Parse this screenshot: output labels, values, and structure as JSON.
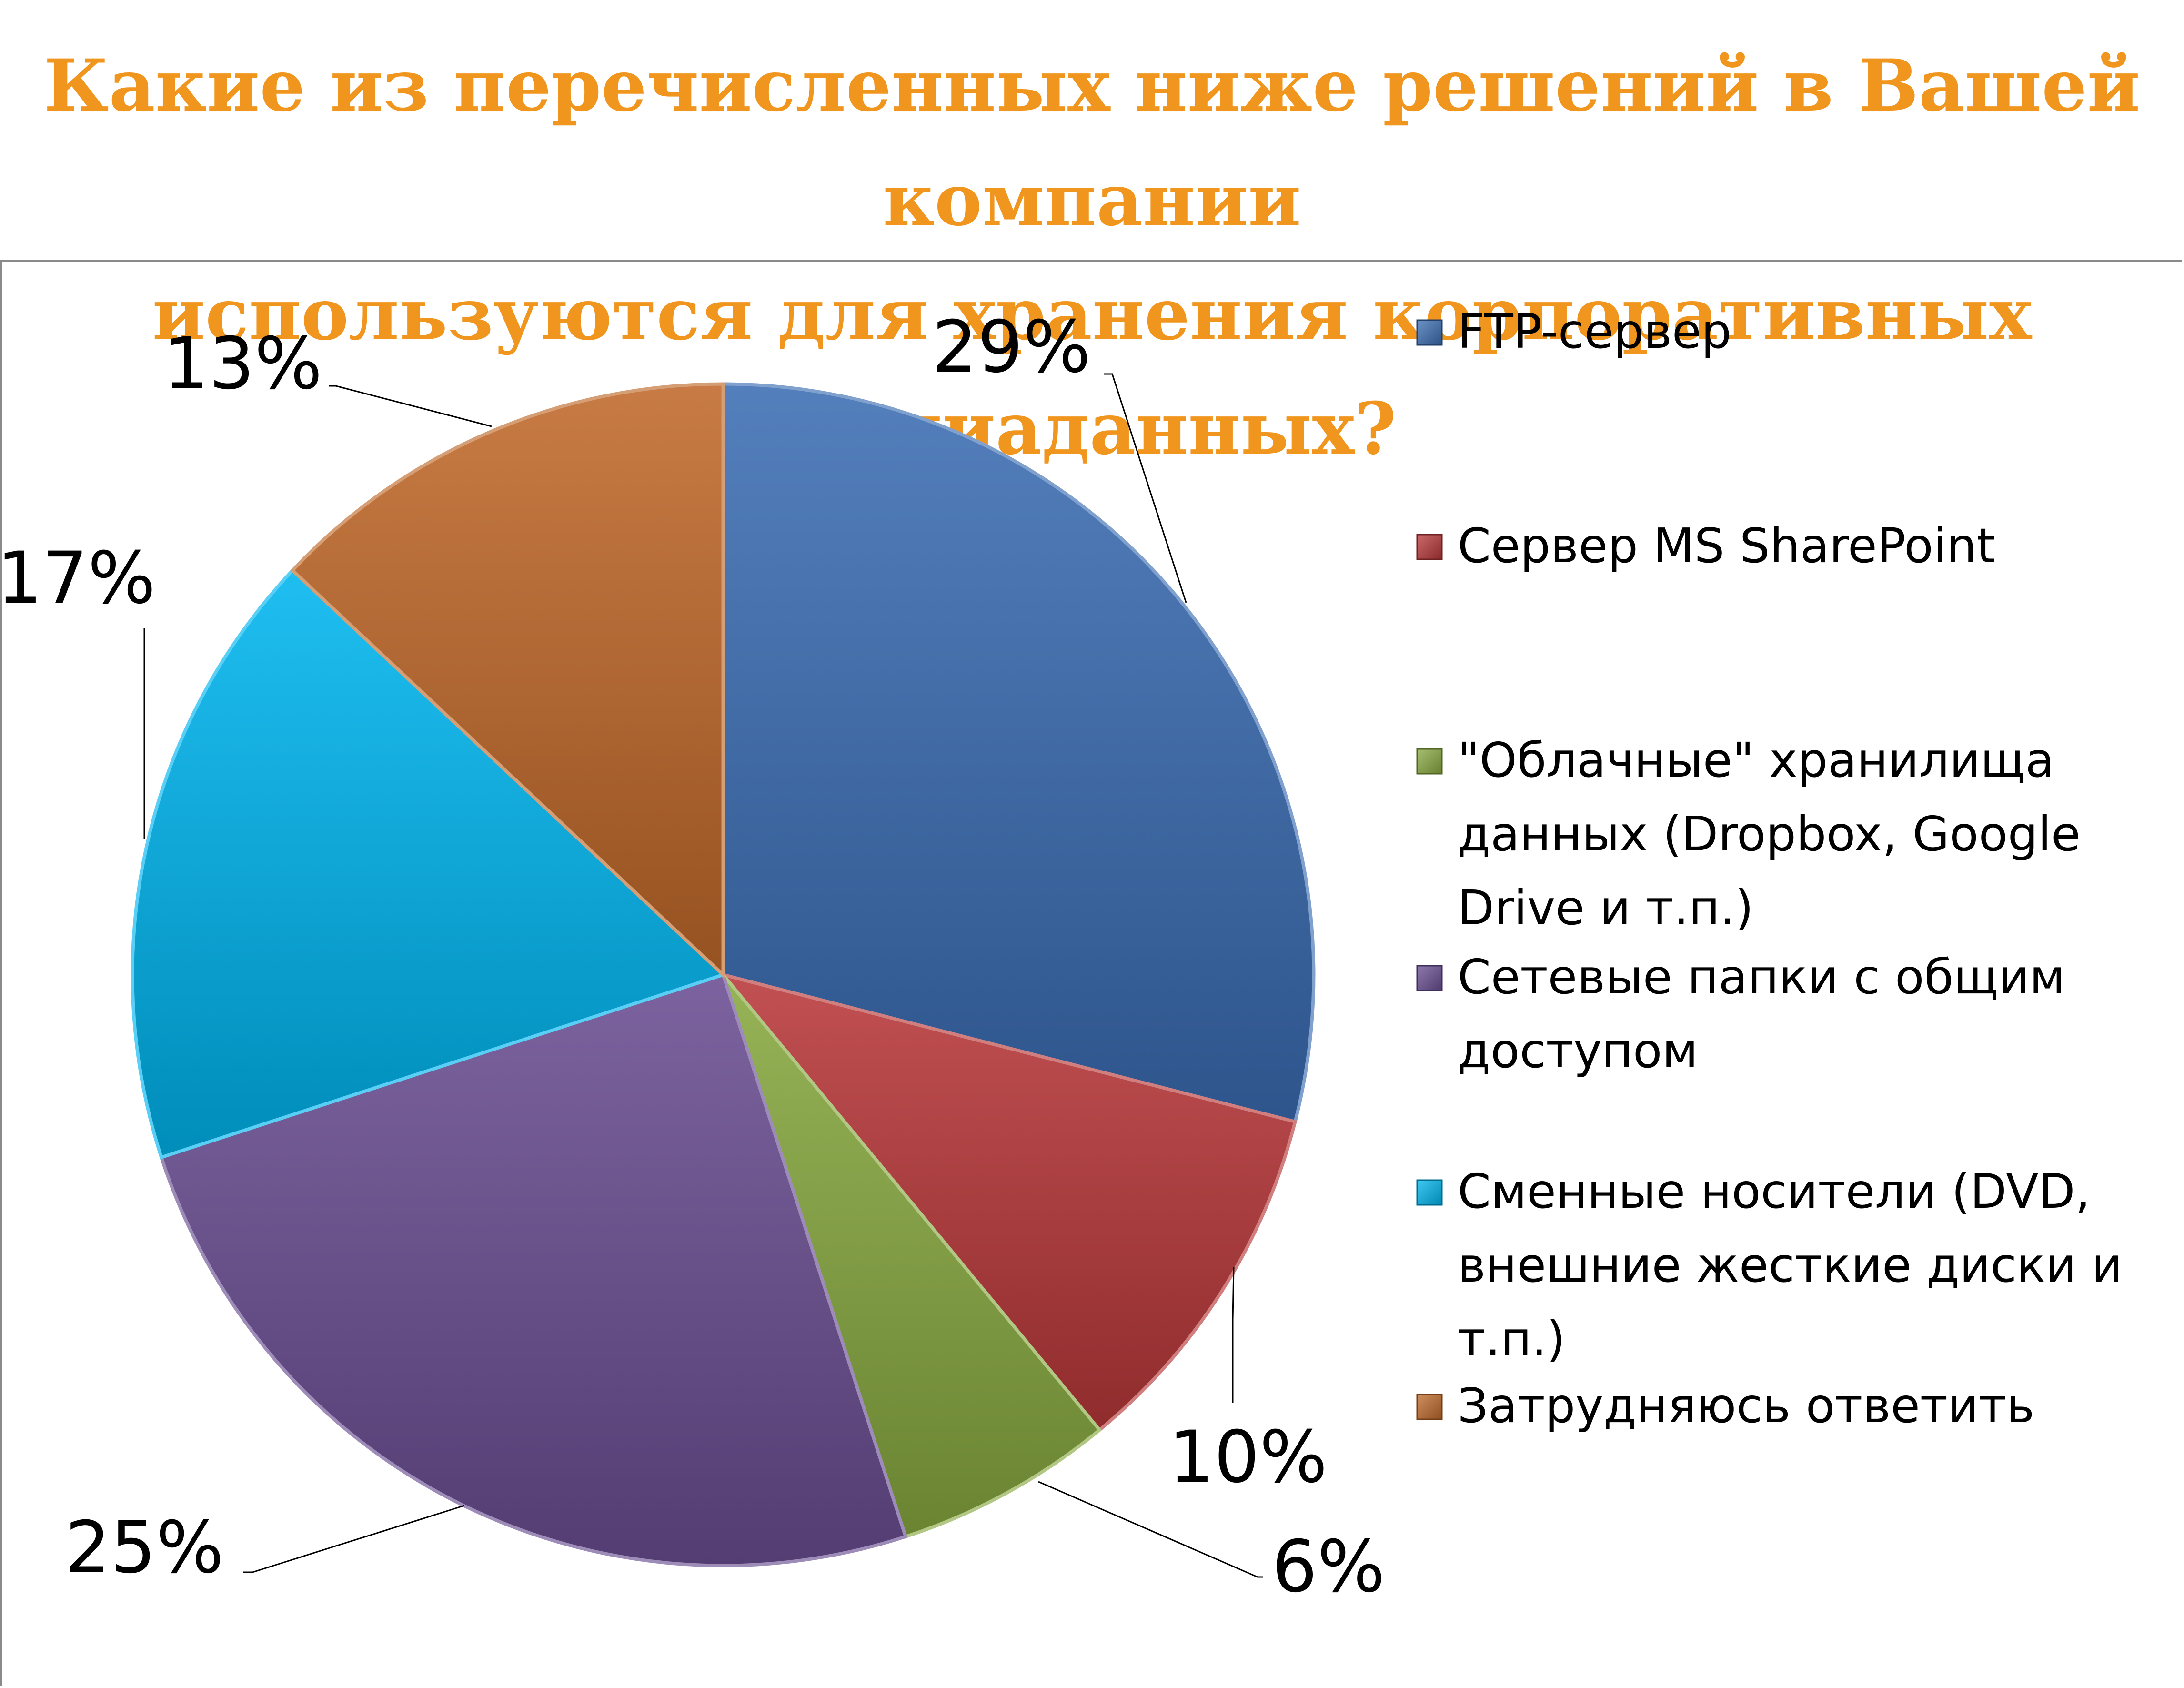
{
  "title_lines": [
    "Какие из перечисленных ниже решений в Вашей компании",
    "используются для хранения корпоративных медиаданных?"
  ],
  "chart_data": {
    "type": "pie",
    "title": "Какие из перечисленных ниже решений в Вашей компании используются для хранения корпоративных медиаданных?",
    "start_angle_deg": 0,
    "direction": "clockwise",
    "legend_position": "right",
    "slices": [
      {
        "label": "FTP-сервер",
        "legend_lines": [
          "FTP-сервер"
        ],
        "value": 29,
        "display": "29%",
        "color": "#3B6DB3"
      },
      {
        "label": "Сервер MS SharePoint",
        "legend_lines": [
          "Сервер MS SharePoint"
        ],
        "value": 10,
        "display": "10%",
        "color": "#B8383A"
      },
      {
        "label": "\"Облачные\" хранилища данных (Dropbox, Google Drive и т.п.)",
        "legend_lines": [
          "\"Облачные\" хранилища",
          "данных (Dropbox, Google",
          "Drive и т.п.)"
        ],
        "value": 6,
        "display": "6%",
        "color": "#88A940"
      },
      {
        "label": "Сетевые папки с общим доступом",
        "legend_lines": [
          "Сетевые папки с общим",
          "доступом"
        ],
        "value": 25,
        "display": "25%",
        "color": "#6A4E92"
      },
      {
        "label": "Сменные носители (DVD, внешние жесткие диски и т.п.)",
        "legend_lines": [
          "Сменные носители (DVD,",
          "внешние жесткие диски и",
          "т.п.)"
        ],
        "value": 17,
        "display": "17%",
        "color": "#00B5EF"
      },
      {
        "label": "Затрудняюсь ответить",
        "legend_lines": [
          "Затрудняюсь ответить"
        ],
        "value": 13,
        "display": "13%",
        "color": "#C0692A"
      }
    ]
  }
}
